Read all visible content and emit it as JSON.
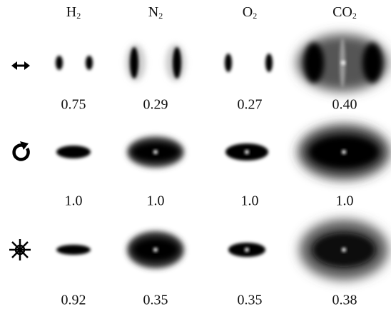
{
  "columns": [
    {
      "base": "H",
      "sub": "2"
    },
    {
      "base": "N",
      "sub": "2"
    },
    {
      "base": "O",
      "sub": "2"
    },
    {
      "base": "CO",
      "sub": "2"
    }
  ],
  "rows": [
    {
      "values": [
        "0.75",
        "0.29",
        "0.27",
        "0.40"
      ]
    },
    {
      "values": [
        "1.0",
        "1.0",
        "1.0",
        "1.0"
      ]
    },
    {
      "values": [
        "0.92",
        "0.35",
        "0.35",
        "0.38"
      ]
    }
  ]
}
